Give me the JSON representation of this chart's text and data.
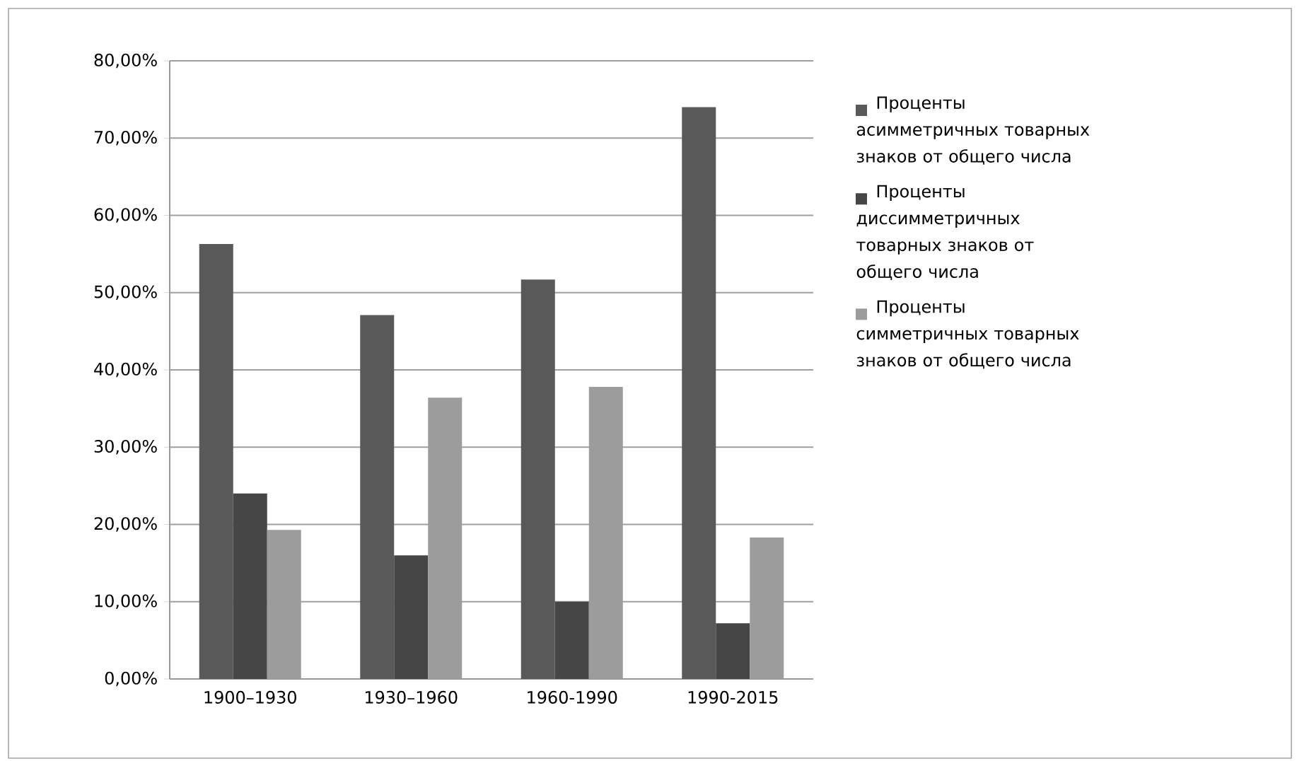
{
  "chart_data": {
    "type": "bar",
    "categories": [
      "1900–1930",
      "1930–1960",
      "1960-1990",
      "1990-2015"
    ],
    "series": [
      {
        "name": "Проценты асимметричных товарных знаков от общего числа",
        "color": "#595959",
        "values": [
          56.3,
          47.1,
          51.7,
          74.0
        ]
      },
      {
        "name": "Проценты диссимметричных товарных знаков от общего числа",
        "color": "#464646",
        "values": [
          24.0,
          16.0,
          10.0,
          7.2
        ]
      },
      {
        "name": "Проценты симметричных товарных знаков от общего числа",
        "color": "#9c9c9c",
        "values": [
          19.3,
          36.4,
          37.8,
          18.3
        ]
      }
    ],
    "ylim": [
      0,
      80
    ],
    "yticks": [
      {
        "value": 0,
        "label": "0,00%"
      },
      {
        "value": 10,
        "label": "10,00%"
      },
      {
        "value": 20,
        "label": "20,00%"
      },
      {
        "value": 30,
        "label": "30,00%"
      },
      {
        "value": 40,
        "label": "40,00%"
      },
      {
        "value": 50,
        "label": "50,00%"
      },
      {
        "value": 60,
        "label": "60,00%"
      },
      {
        "value": 70,
        "label": "70,00%"
      },
      {
        "value": 80,
        "label": "80,00%"
      }
    ],
    "grid": "y",
    "legend": "right"
  }
}
